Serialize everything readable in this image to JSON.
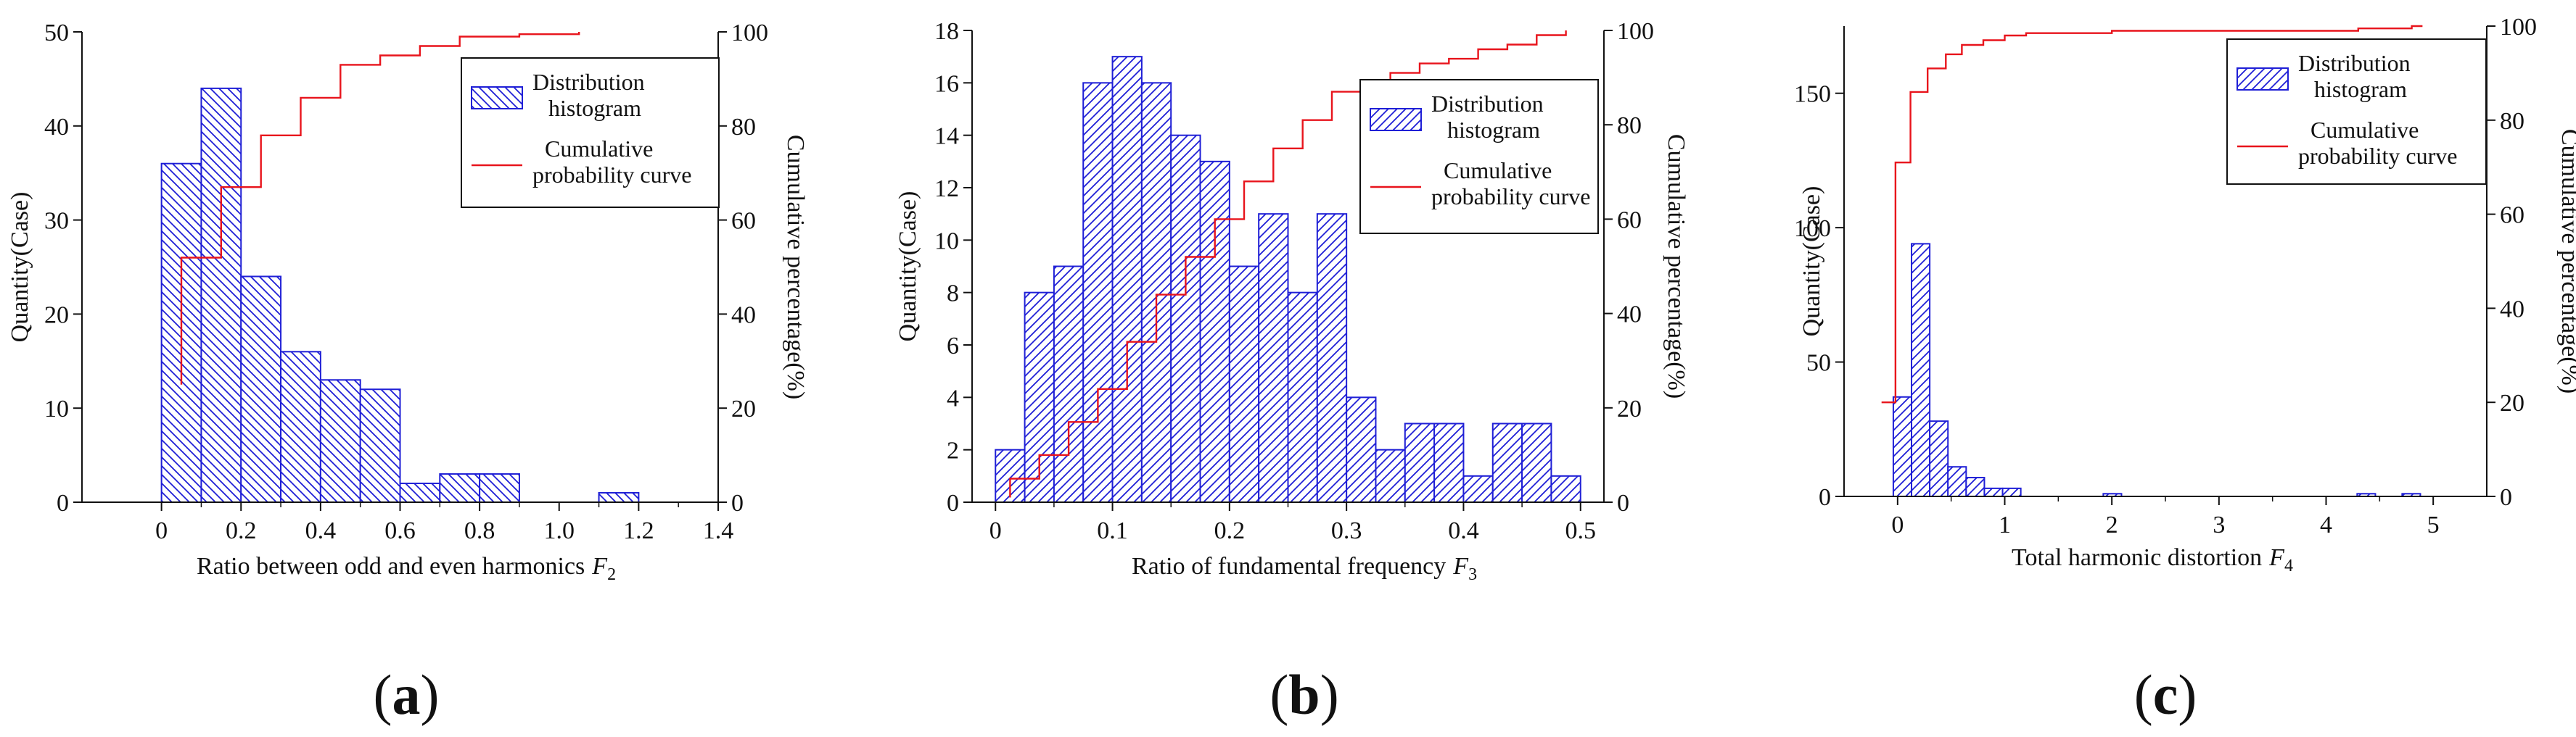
{
  "chart_data": [
    {
      "type": "bar",
      "panel_label": "a",
      "xlabel": "Ratio between odd and even harmonics",
      "xlabel_var": "F",
      "xlabel_sub": "2",
      "ylabel": "Quantity(Case)",
      "ylabel_right": "Cumulative percentage(%)",
      "xlim": [
        -0.2,
        1.4
      ],
      "ylim": [
        0,
        50
      ],
      "y2lim": [
        0,
        100
      ],
      "xticks": [
        0,
        0.2,
        0.4,
        0.6,
        0.8,
        1.0,
        1.2,
        1.4
      ],
      "xtick_labels": [
        "0",
        "0.2",
        "0.4",
        "0.6",
        "0.8",
        "1.0",
        "1.2",
        "1.4"
      ],
      "yticks": [
        0,
        10,
        20,
        30,
        40,
        50
      ],
      "y2ticks": [
        0,
        20,
        40,
        60,
        80,
        100
      ],
      "bin_width": 0.1,
      "bins": [
        {
          "x0": 0.0,
          "x1": 0.1,
          "value": 36
        },
        {
          "x0": 0.1,
          "x1": 0.2,
          "value": 44
        },
        {
          "x0": 0.2,
          "x1": 0.3,
          "value": 24
        },
        {
          "x0": 0.3,
          "x1": 0.4,
          "value": 16
        },
        {
          "x0": 0.4,
          "x1": 0.5,
          "value": 13
        },
        {
          "x0": 0.5,
          "x1": 0.6,
          "value": 12
        },
        {
          "x0": 0.6,
          "x1": 0.7,
          "value": 2
        },
        {
          "x0": 0.7,
          "x1": 0.8,
          "value": 3
        },
        {
          "x0": 0.8,
          "x1": 0.9,
          "value": 3
        },
        {
          "x0": 1.1,
          "x1": 1.2,
          "value": 1
        }
      ],
      "cumulative": [
        {
          "x": 0.05,
          "y": 25
        },
        {
          "x": 0.05,
          "y": 52
        },
        {
          "x": 0.15,
          "y": 52
        },
        {
          "x": 0.15,
          "y": 67
        },
        {
          "x": 0.25,
          "y": 67
        },
        {
          "x": 0.25,
          "y": 78
        },
        {
          "x": 0.35,
          "y": 78
        },
        {
          "x": 0.35,
          "y": 86
        },
        {
          "x": 0.45,
          "y": 86
        },
        {
          "x": 0.45,
          "y": 93
        },
        {
          "x": 0.55,
          "y": 93
        },
        {
          "x": 0.55,
          "y": 95
        },
        {
          "x": 0.65,
          "y": 95
        },
        {
          "x": 0.65,
          "y": 97
        },
        {
          "x": 0.75,
          "y": 97
        },
        {
          "x": 0.75,
          "y": 99
        },
        {
          "x": 0.9,
          "y": 99
        },
        {
          "x": 0.9,
          "y": 99.5
        },
        {
          "x": 1.05,
          "y": 99.5
        },
        {
          "x": 1.05,
          "y": 100
        }
      ],
      "legend": {
        "histogram": [
          "Distribution",
          "histogram"
        ],
        "curve": [
          "Cumulative",
          "probability curve"
        ],
        "placement": "top-right"
      },
      "colors": {
        "bar": "#1f1fd6",
        "curve": "#e8141c"
      }
    },
    {
      "type": "bar",
      "panel_label": "b",
      "xlabel": "Ratio of fundamental frequency",
      "xlabel_var": "F",
      "xlabel_sub": "3",
      "ylabel": "Quantity(Case)",
      "ylabel_right": "Cumulative percentage(%)",
      "xlim": [
        -0.02,
        0.52
      ],
      "ylim": [
        0,
        18
      ],
      "y2lim": [
        0,
        100
      ],
      "xticks": [
        0,
        0.1,
        0.2,
        0.3,
        0.4,
        0.5
      ],
      "xtick_labels": [
        "0",
        "0.1",
        "0.2",
        "0.3",
        "0.4",
        "0.5"
      ],
      "yticks": [
        0,
        2,
        4,
        6,
        8,
        10,
        12,
        14,
        16,
        18
      ],
      "y2ticks": [
        0,
        20,
        40,
        60,
        80,
        100
      ],
      "bin_width": 0.025,
      "bins": [
        {
          "x0": 0.0,
          "x1": 0.025,
          "value": 2
        },
        {
          "x0": 0.025,
          "x1": 0.05,
          "value": 8
        },
        {
          "x0": 0.05,
          "x1": 0.075,
          "value": 9
        },
        {
          "x0": 0.075,
          "x1": 0.1,
          "value": 16
        },
        {
          "x0": 0.1,
          "x1": 0.125,
          "value": 17
        },
        {
          "x0": 0.125,
          "x1": 0.15,
          "value": 16
        },
        {
          "x0": 0.15,
          "x1": 0.175,
          "value": 14
        },
        {
          "x0": 0.175,
          "x1": 0.2,
          "value": 13
        },
        {
          "x0": 0.2,
          "x1": 0.225,
          "value": 9
        },
        {
          "x0": 0.225,
          "x1": 0.25,
          "value": 11
        },
        {
          "x0": 0.25,
          "x1": 0.275,
          "value": 8
        },
        {
          "x0": 0.275,
          "x1": 0.3,
          "value": 11
        },
        {
          "x0": 0.3,
          "x1": 0.325,
          "value": 4
        },
        {
          "x0": 0.325,
          "x1": 0.35,
          "value": 2
        },
        {
          "x0": 0.35,
          "x1": 0.375,
          "value": 3
        },
        {
          "x0": 0.375,
          "x1": 0.4,
          "value": 3
        },
        {
          "x0": 0.4,
          "x1": 0.425,
          "value": 1
        },
        {
          "x0": 0.425,
          "x1": 0.45,
          "value": 3
        },
        {
          "x0": 0.45,
          "x1": 0.475,
          "value": 3
        },
        {
          "x0": 0.475,
          "x1": 0.5,
          "value": 1
        }
      ],
      "cumulative": [
        {
          "x": 0.0125,
          "y": 1
        },
        {
          "x": 0.0125,
          "y": 5
        },
        {
          "x": 0.0375,
          "y": 5
        },
        {
          "x": 0.0375,
          "y": 10
        },
        {
          "x": 0.0625,
          "y": 10
        },
        {
          "x": 0.0625,
          "y": 17
        },
        {
          "x": 0.0875,
          "y": 17
        },
        {
          "x": 0.0875,
          "y": 24
        },
        {
          "x": 0.1125,
          "y": 24
        },
        {
          "x": 0.1125,
          "y": 34
        },
        {
          "x": 0.1375,
          "y": 34
        },
        {
          "x": 0.1375,
          "y": 44
        },
        {
          "x": 0.1625,
          "y": 44
        },
        {
          "x": 0.1625,
          "y": 52
        },
        {
          "x": 0.1875,
          "y": 52
        },
        {
          "x": 0.1875,
          "y": 60
        },
        {
          "x": 0.2125,
          "y": 60
        },
        {
          "x": 0.2125,
          "y": 68
        },
        {
          "x": 0.2375,
          "y": 68
        },
        {
          "x": 0.2375,
          "y": 75
        },
        {
          "x": 0.2625,
          "y": 75
        },
        {
          "x": 0.2625,
          "y": 81
        },
        {
          "x": 0.2875,
          "y": 81
        },
        {
          "x": 0.2875,
          "y": 87
        },
        {
          "x": 0.3125,
          "y": 87
        },
        {
          "x": 0.3125,
          "y": 89
        },
        {
          "x": 0.3375,
          "y": 89
        },
        {
          "x": 0.3375,
          "y": 91
        },
        {
          "x": 0.3625,
          "y": 91
        },
        {
          "x": 0.3625,
          "y": 93
        },
        {
          "x": 0.3875,
          "y": 93
        },
        {
          "x": 0.3875,
          "y": 94
        },
        {
          "x": 0.4125,
          "y": 94
        },
        {
          "x": 0.4125,
          "y": 96
        },
        {
          "x": 0.4375,
          "y": 96
        },
        {
          "x": 0.4375,
          "y": 97
        },
        {
          "x": 0.4625,
          "y": 97
        },
        {
          "x": 0.4625,
          "y": 99
        },
        {
          "x": 0.4875,
          "y": 99
        },
        {
          "x": 0.4875,
          "y": 100
        }
      ],
      "legend": {
        "histogram": [
          "Distribution",
          "histogram"
        ],
        "curve": [
          "Cumulative",
          "probability curve"
        ],
        "placement": "top-right"
      },
      "colors": {
        "bar": "#1f1fd6",
        "curve": "#e8141c"
      }
    },
    {
      "type": "bar",
      "panel_label": "c",
      "xlabel": "Total harmonic distortion",
      "xlabel_var": "F",
      "xlabel_sub": "4",
      "ylabel": "Quantity(Case)",
      "ylabel_right": "Cumulative percentage(%)",
      "xlim": [
        -0.5,
        5.5
      ],
      "ylim": [
        0,
        175
      ],
      "y2lim": [
        0,
        100
      ],
      "xticks": [
        0,
        1,
        2,
        3,
        4,
        5
      ],
      "xtick_labels": [
        "0",
        "1",
        "2",
        "3",
        "4",
        "5"
      ],
      "yticks": [
        0,
        50,
        100,
        150
      ],
      "y2ticks": [
        0,
        20,
        40,
        60,
        80,
        100
      ],
      "bin_width": 0.17,
      "bins": [
        {
          "x0": -0.04,
          "x1": 0.13,
          "value": 37
        },
        {
          "x0": 0.13,
          "x1": 0.3,
          "value": 94
        },
        {
          "x0": 0.3,
          "x1": 0.47,
          "value": 28
        },
        {
          "x0": 0.47,
          "x1": 0.64,
          "value": 11
        },
        {
          "x0": 0.64,
          "x1": 0.81,
          "value": 7
        },
        {
          "x0": 0.81,
          "x1": 0.98,
          "value": 3
        },
        {
          "x0": 0.98,
          "x1": 1.15,
          "value": 3
        },
        {
          "x0": 1.92,
          "x1": 2.09,
          "value": 1
        },
        {
          "x0": 4.29,
          "x1": 4.46,
          "value": 1
        },
        {
          "x0": 4.71,
          "x1": 4.88,
          "value": 1
        }
      ],
      "cumulative": [
        {
          "x": -0.15,
          "y": 20
        },
        {
          "x": -0.02,
          "y": 20
        },
        {
          "x": -0.02,
          "y": 71
        },
        {
          "x": 0.12,
          "y": 71
        },
        {
          "x": 0.12,
          "y": 86
        },
        {
          "x": 0.28,
          "y": 86
        },
        {
          "x": 0.28,
          "y": 91
        },
        {
          "x": 0.45,
          "y": 91
        },
        {
          "x": 0.45,
          "y": 94
        },
        {
          "x": 0.6,
          "y": 94
        },
        {
          "x": 0.6,
          "y": 96
        },
        {
          "x": 0.8,
          "y": 96
        },
        {
          "x": 0.8,
          "y": 97
        },
        {
          "x": 1.0,
          "y": 97
        },
        {
          "x": 1.0,
          "y": 98
        },
        {
          "x": 1.2,
          "y": 98
        },
        {
          "x": 1.2,
          "y": 98.5
        },
        {
          "x": 2.0,
          "y": 98.5
        },
        {
          "x": 2.0,
          "y": 99
        },
        {
          "x": 4.3,
          "y": 99
        },
        {
          "x": 4.3,
          "y": 99.5
        },
        {
          "x": 4.8,
          "y": 99.5
        },
        {
          "x": 4.8,
          "y": 100
        },
        {
          "x": 4.9,
          "y": 100
        }
      ],
      "legend": {
        "histogram": [
          "Distribution",
          "histogram"
        ],
        "curve": [
          "Cumulative",
          "probability curve"
        ],
        "placement": "top-right"
      },
      "colors": {
        "bar": "#1f1fd6",
        "curve": "#e8141c"
      }
    }
  ]
}
